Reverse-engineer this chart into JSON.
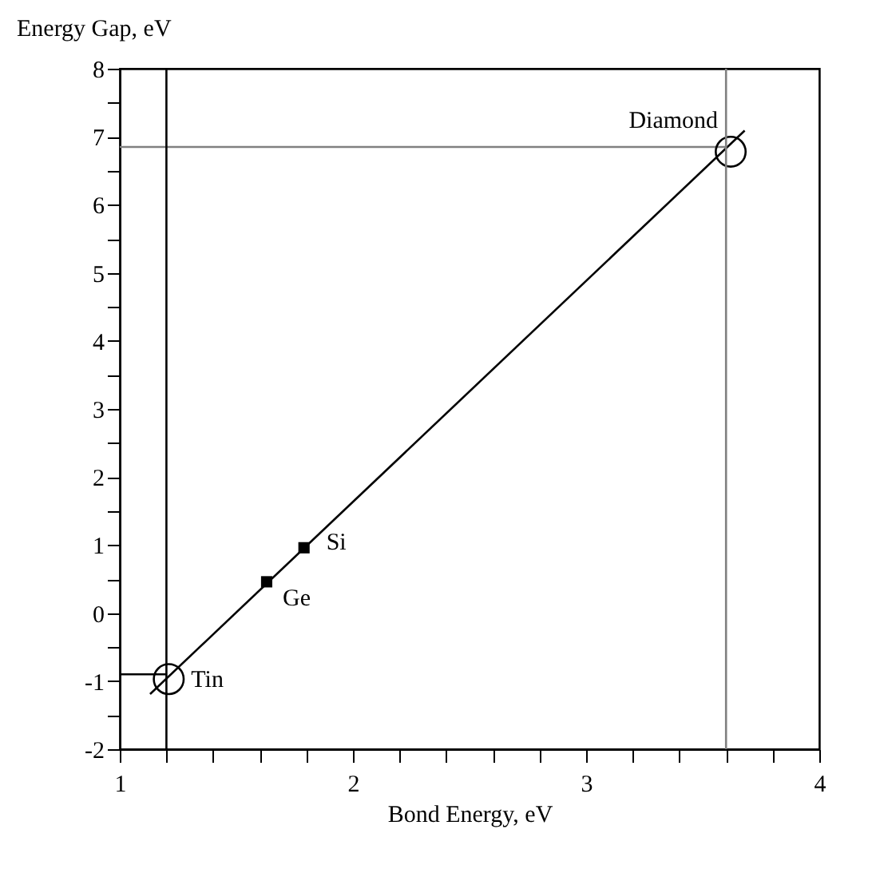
{
  "chart_data": {
    "type": "scatter",
    "xlabel": "Bond Energy, eV",
    "ylabel": "Energy Gap, eV",
    "xlim": [
      1,
      4
    ],
    "ylim": [
      -2,
      8
    ],
    "xticks": [
      1,
      {
        "value": 1.2,
        "label": null
      },
      {
        "value": 1.4,
        "label": null
      },
      {
        "value": 1.6,
        "label": null
      },
      {
        "value": 1.8,
        "label": null
      },
      2,
      {
        "value": 2.2,
        "label": null
      },
      {
        "value": 2.4,
        "label": null
      },
      {
        "value": 2.6,
        "label": null
      },
      {
        "value": 2.8,
        "label": null
      },
      3,
      {
        "value": 3.2,
        "label": null
      },
      {
        "value": 3.4,
        "label": null
      },
      {
        "value": 3.6,
        "label": null
      },
      {
        "value": 3.8,
        "label": null
      },
      4
    ],
    "yticks": [
      -2,
      {
        "value": -1.5,
        "label": null
      },
      -1,
      {
        "value": -0.5,
        "label": null
      },
      0,
      {
        "value": 0.5,
        "label": null
      },
      1,
      {
        "value": 1.5,
        "label": null
      },
      2,
      {
        "value": 2.5,
        "label": null
      },
      3,
      {
        "value": 3.5,
        "label": null
      },
      4,
      {
        "value": 4.5,
        "label": null
      },
      5,
      {
        "value": 5.5,
        "label": null
      },
      6,
      {
        "value": 6.5,
        "label": null
      },
      7,
      {
        "value": 7.5,
        "label": null
      },
      8
    ],
    "grid": false,
    "series": [
      {
        "type": "line",
        "color": "#000000",
        "x": [
          1.13,
          3.68
        ],
        "values": [
          -1.19,
          7.09
        ],
        "marker": "none",
        "line_style": "solid"
      },
      {
        "type": "line",
        "color": "#808080",
        "x": [
          1,
          3.6
        ],
        "values": [
          6.85,
          6.85
        ],
        "marker": "none",
        "line_style": "solid"
      },
      {
        "type": "line",
        "color": "#000000",
        "x": [
          1,
          1.2
        ],
        "values": [
          -0.9,
          -0.9
        ],
        "marker": "none",
        "line_style": "solid"
      },
      {
        "type": "scatter",
        "color": "#000000",
        "x": [
          1.21,
          3.62
        ],
        "values": [
          -0.97,
          6.78
        ],
        "marker": "circle"
      },
      {
        "type": "scatter",
        "color": "#000000",
        "x": [
          1.63,
          1.79
        ],
        "values": [
          0.46,
          0.96
        ],
        "marker": "square"
      }
    ],
    "ref_lines": [
      {
        "axis": "x",
        "value": 1.2,
        "color": "#000000"
      },
      {
        "axis": "x",
        "value": 3.6,
        "color": "#808080"
      }
    ],
    "annotations": [
      {
        "text": "Tin",
        "x": 1.21,
        "y": -0.97
      },
      {
        "text": "Diamond",
        "x": 3.62,
        "y": 6.78
      },
      {
        "text": "Ge",
        "x": 1.63,
        "y": 0.46
      },
      {
        "text": "Si",
        "x": 1.79,
        "y": 0.96
      }
    ]
  }
}
